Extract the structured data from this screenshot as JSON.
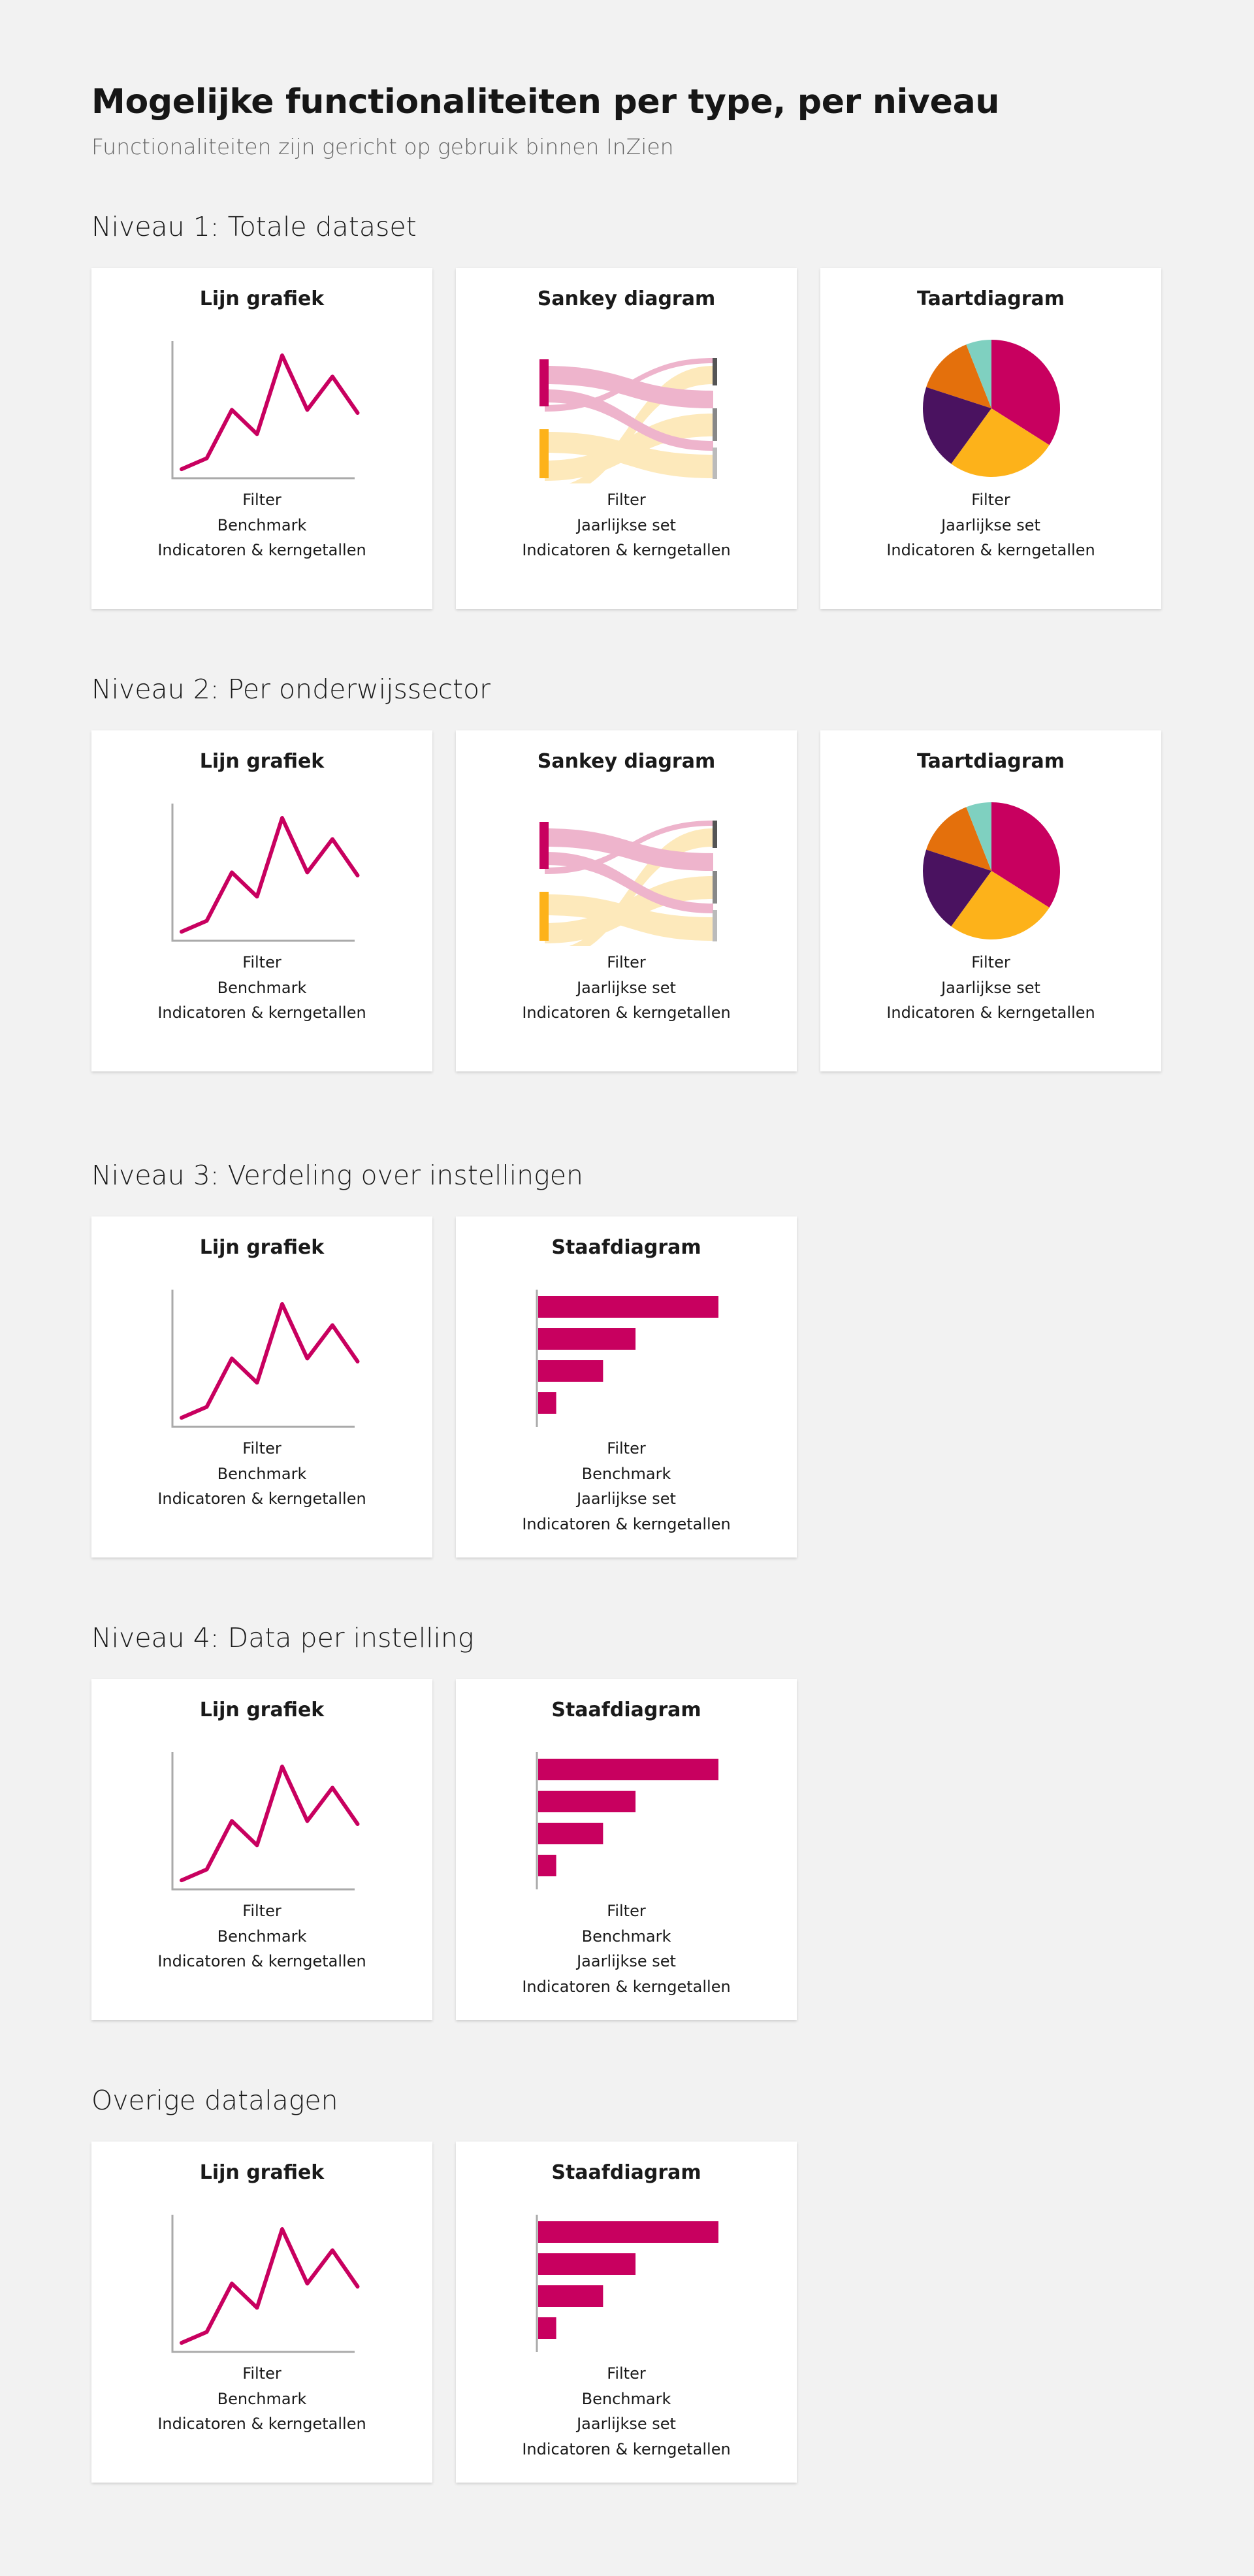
{
  "page": {
    "title": "Mogelijke functionaliteiten per type, per niveau",
    "subtitle": "Functionaliteiten zijn gericht op gebruik binnen InZien"
  },
  "colors": {
    "magenta": "#c8005f",
    "sankey_pink": "#eeb4cc",
    "sankey_yellow": "#fde9bb",
    "amber": "#fdb21a",
    "dark_gray": "#555555",
    "mid_gray": "#888888",
    "light_gray": "#bbbbbb",
    "pie_magenta": "#c8005f",
    "pie_yellow": "#fdb21a",
    "pie_purple": "#4a1260",
    "pie_orange": "#e4700c",
    "pie_teal": "#7fd0c0",
    "axis": "#aaaaaa"
  },
  "sections": [
    {
      "title": "Niveau 1: Totale dataset",
      "cards": [
        {
          "title": "Lijn grafiek",
          "chart": "line",
          "features": [
            "Filter",
            "Benchmark",
            "Indicatoren & kerngetallen"
          ]
        },
        {
          "title": "Sankey diagram",
          "chart": "sankey",
          "features": [
            "Filter",
            "Jaarlijkse set",
            "Indicatoren & kerngetallen"
          ]
        },
        {
          "title": "Taartdiagram",
          "chart": "pie",
          "features": [
            "Filter",
            "Jaarlijkse set",
            "Indicatoren & kerngetallen"
          ]
        }
      ]
    },
    {
      "title": "Niveau 2: Per onderwijssector",
      "cards": [
        {
          "title": "Lijn grafiek",
          "chart": "line",
          "features": [
            "Filter",
            "Benchmark",
            "Indicatoren & kerngetallen"
          ]
        },
        {
          "title": "Sankey diagram",
          "chart": "sankey",
          "features": [
            "Filter",
            "Jaarlijkse set",
            "Indicatoren & kerngetallen"
          ]
        },
        {
          "title": "Taartdiagram",
          "chart": "pie",
          "features": [
            "Filter",
            "Jaarlijkse set",
            "Indicatoren & kerngetallen"
          ]
        }
      ]
    },
    {
      "title": "Niveau 3: Verdeling over instellingen",
      "cards": [
        {
          "title": "Lijn grafiek",
          "chart": "line",
          "features": [
            "Filter",
            "Benchmark",
            "Indicatoren & kerngetallen"
          ]
        },
        {
          "title": "Staafdiagram",
          "chart": "bar",
          "features": [
            "Filter",
            "Benchmark",
            "Jaarlijkse set",
            "Indicatoren & kerngetallen"
          ]
        }
      ]
    },
    {
      "title": "Niveau 4: Data per instelling",
      "cards": [
        {
          "title": "Lijn grafiek",
          "chart": "line",
          "features": [
            "Filter",
            "Benchmark",
            "Indicatoren & kerngetallen"
          ]
        },
        {
          "title": "Staafdiagram",
          "chart": "bar",
          "features": [
            "Filter",
            "Benchmark",
            "Jaarlijkse set",
            "Indicatoren & kerngetallen"
          ]
        }
      ]
    },
    {
      "title": "Overige datalagen",
      "cards": [
        {
          "title": "Lijn grafiek",
          "chart": "line",
          "features": [
            "Filter",
            "Benchmark",
            "Indicatoren & kerngetallen"
          ]
        },
        {
          "title": "Staafdiagram",
          "chart": "bar",
          "features": [
            "Filter",
            "Benchmark",
            "Jaarlijkse set",
            "Indicatoren & kerngetallen"
          ]
        }
      ]
    }
  ],
  "icon_charts": {
    "line": {
      "values": [
        2,
        20,
        100,
        60,
        190,
        100,
        155,
        95
      ]
    },
    "bar": {
      "values": [
        100,
        54,
        36,
        10
      ]
    },
    "pie": {
      "slices": [
        {
          "value": 34,
          "color_key": "pie_magenta"
        },
        {
          "value": 26,
          "color_key": "pie_yellow"
        },
        {
          "value": 20,
          "color_key": "pie_purple"
        },
        {
          "value": 14,
          "color_key": "pie_orange"
        },
        {
          "value": 6,
          "color_key": "pie_teal"
        }
      ]
    }
  }
}
